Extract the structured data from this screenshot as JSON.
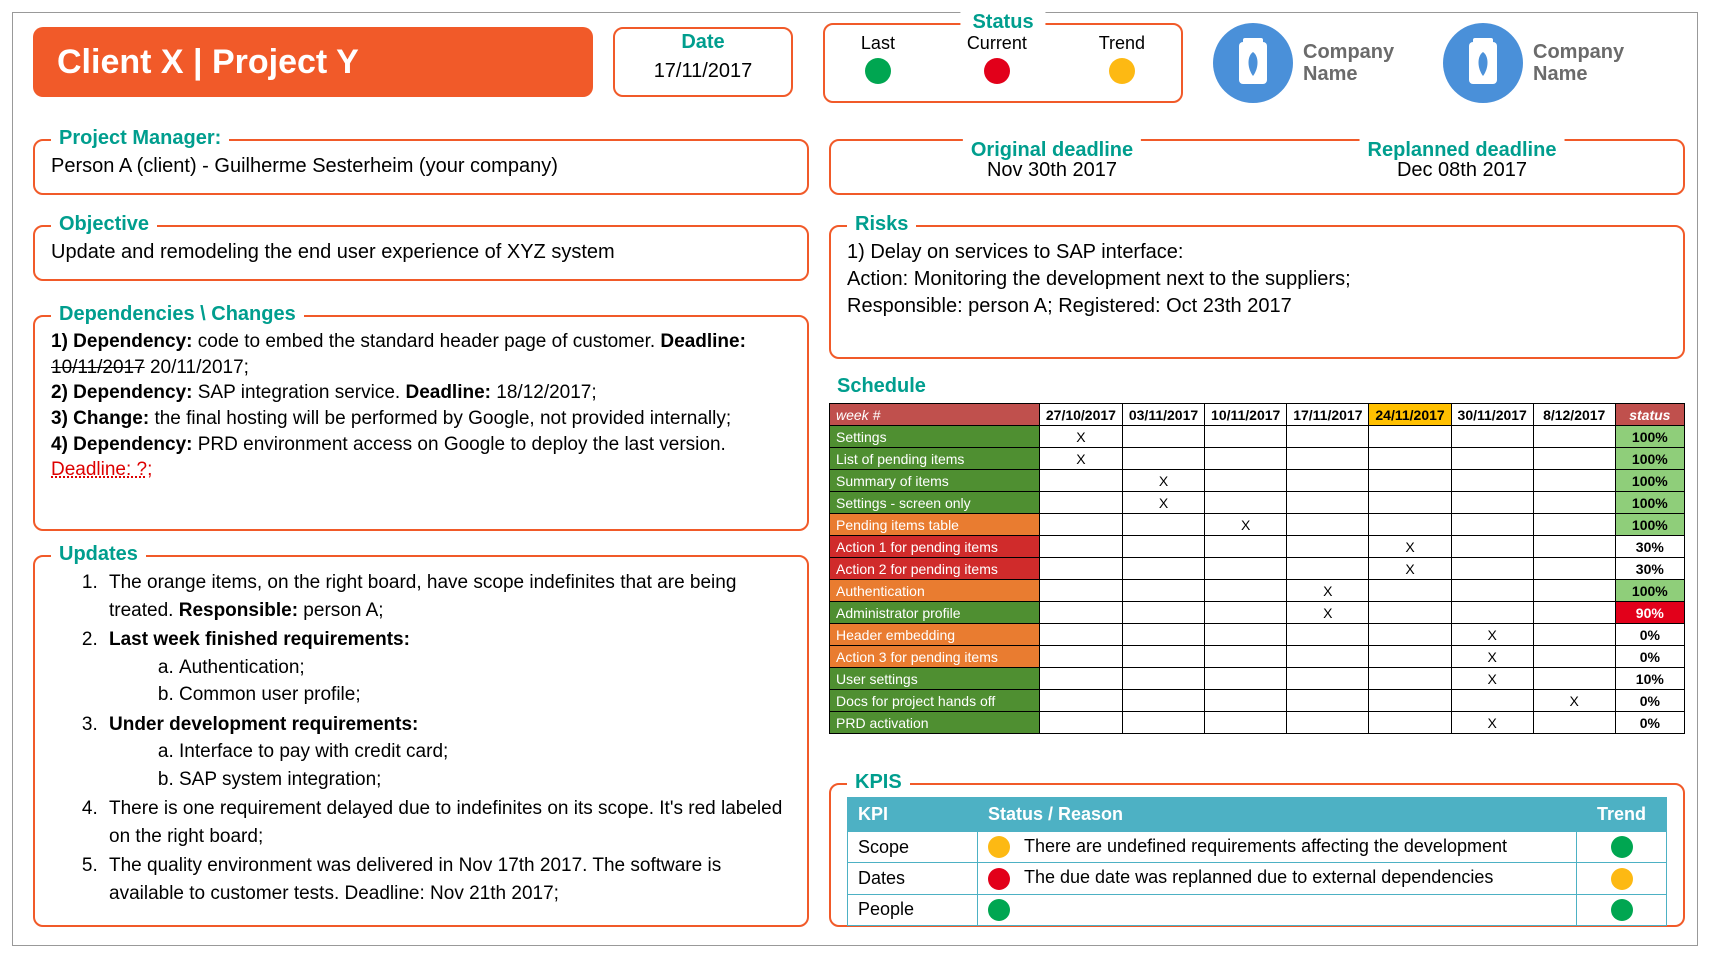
{
  "colors": {
    "orange": "#f15a29",
    "teal": "#009e8e",
    "green": "#00a651",
    "red": "#e2001a",
    "yellow": "#fdb913",
    "scheduleHeaderRed": "#c0504d",
    "scheduleGreen": "#4f8f31",
    "scheduleOrange": "#e97c30",
    "scheduleRed": "#d02b2b",
    "status100": "#8fce7a",
    "status90red": "#e2001a",
    "kpiHeader": "#4db1c4",
    "logoBlue": "#4a90d9"
  },
  "title": "Client X | Project Y",
  "date": {
    "label": "Date",
    "value": "17/11/2017"
  },
  "status": {
    "title": "Status",
    "cols": [
      {
        "label": "Last",
        "color": "#00a651"
      },
      {
        "label": "Current",
        "color": "#e2001a"
      },
      {
        "label": "Trend",
        "color": "#fdb913"
      }
    ]
  },
  "logos": [
    {
      "line1": "Company",
      "line2": "Name"
    },
    {
      "line1": "Company",
      "line2": "Name"
    }
  ],
  "pm": {
    "label": "Project Manager:",
    "value": "Person A (client) - Guilherme Sesterheim (your company)"
  },
  "objective": {
    "label": "Objective",
    "value": "Update and remodeling the end user experience of XYZ system"
  },
  "deadlines": {
    "original": {
      "label": "Original deadline",
      "value": "Nov 30th 2017"
    },
    "replanned": {
      "label": "Replanned deadline",
      "value": "Dec 08th 2017"
    }
  },
  "risks": {
    "label": "Risks",
    "lines": [
      "1) Delay on services to SAP interface:",
      "Action: Monitoring the development next to the suppliers;",
      "Responsible: person A;      Registered: Oct 23th 2017"
    ]
  },
  "dependencies": {
    "label": "Dependencies \\ Changes",
    "items": [
      {
        "prefix": "1) Dependency:",
        "text": " code to embed the standard header page of customer. ",
        "boldSuffix": "Deadline:",
        "strike": "10/11/2017",
        "after": " 20/11/2017;"
      },
      {
        "prefix": "2) Dependency:",
        "text": " SAP integration service. ",
        "boldSuffix": "Deadline:",
        "after2": " 18/12/2017;"
      },
      {
        "prefix": "3) Change:",
        "text": " the final hosting will be performed by Google, not provided internally;"
      },
      {
        "prefix": "4) Dependency:",
        "text": " PRD environment access on Google to deploy the last version. ",
        "redSuffix": "Deadline: ?;"
      }
    ]
  },
  "updates": {
    "label": "Updates",
    "items": [
      {
        "text": "The orange items, on the right board, have scope indefinites that are being treated. ",
        "boldInline": "Responsible:",
        "after": " person A;"
      },
      {
        "boldFull": "Last week finished requirements:",
        "sub": [
          "Authentication;",
          "Common user profile;"
        ]
      },
      {
        "boldFull": "Under development requirements:",
        "sub": [
          "Interface to pay with credit card;",
          "SAP system integration;"
        ]
      },
      {
        "plain": "There is one requirement delayed due to indefinites on its scope. It's red labeled on the right board;"
      },
      {
        "plain": "The quality environment was delivered in Nov 17th 2017. The software is available to customer tests. Deadline: Nov 21th 2017;"
      }
    ]
  },
  "schedule": {
    "title": "Schedule",
    "weekHeader": "week #",
    "statusHeader": "status",
    "dates": [
      "27/10/2017",
      "03/11/2017",
      "10/11/2017",
      "17/11/2017",
      "24/11/2017",
      "30/11/2017",
      "8/12/2017"
    ],
    "highlightCol": 4,
    "rows": [
      {
        "name": "Settings",
        "rowColor": "#4f8f31",
        "marks": [
          true,
          false,
          false,
          false,
          false,
          false,
          false
        ],
        "status": "100%",
        "statusBg": "#8fce7a",
        "statusColor": "#000"
      },
      {
        "name": "List of pending items",
        "rowColor": "#4f8f31",
        "marks": [
          true,
          false,
          false,
          false,
          false,
          false,
          false
        ],
        "status": "100%",
        "statusBg": "#8fce7a",
        "statusColor": "#000"
      },
      {
        "name": "Summary of items",
        "rowColor": "#4f8f31",
        "marks": [
          false,
          true,
          false,
          false,
          false,
          false,
          false
        ],
        "status": "100%",
        "statusBg": "#8fce7a",
        "statusColor": "#000"
      },
      {
        "name": "Settings - screen only",
        "rowColor": "#4f8f31",
        "marks": [
          false,
          true,
          false,
          false,
          false,
          false,
          false
        ],
        "status": "100%",
        "statusBg": "#8fce7a",
        "statusColor": "#000"
      },
      {
        "name": "Pending items table",
        "rowColor": "#e97c30",
        "marks": [
          false,
          false,
          true,
          false,
          false,
          false,
          false
        ],
        "status": "100%",
        "statusBg": "#8fce7a",
        "statusColor": "#000"
      },
      {
        "name": "Action 1 for pending items",
        "rowColor": "#d02b2b",
        "marks": [
          false,
          false,
          false,
          false,
          true,
          false,
          false
        ],
        "status": "30%",
        "statusBg": "#ffffff",
        "statusColor": "#000"
      },
      {
        "name": "Action 2 for pending items",
        "rowColor": "#d02b2b",
        "marks": [
          false,
          false,
          false,
          false,
          true,
          false,
          false
        ],
        "status": "30%",
        "statusBg": "#ffffff",
        "statusColor": "#000"
      },
      {
        "name": "Authentication",
        "rowColor": "#e97c30",
        "marks": [
          false,
          false,
          false,
          true,
          false,
          false,
          false
        ],
        "status": "100%",
        "statusBg": "#8fce7a",
        "statusColor": "#000"
      },
      {
        "name": "Administrator profile",
        "rowColor": "#4f8f31",
        "marks": [
          false,
          false,
          false,
          true,
          false,
          false,
          false
        ],
        "status": "90%",
        "statusBg": "#e2001a",
        "statusColor": "#fff"
      },
      {
        "name": "Header embedding",
        "rowColor": "#e97c30",
        "marks": [
          false,
          false,
          false,
          false,
          false,
          true,
          false
        ],
        "status": "0%",
        "statusBg": "#ffffff",
        "statusColor": "#000"
      },
      {
        "name": "Action 3 for pending items",
        "rowColor": "#e97c30",
        "marks": [
          false,
          false,
          false,
          false,
          false,
          true,
          false
        ],
        "status": "0%",
        "statusBg": "#ffffff",
        "statusColor": "#000"
      },
      {
        "name": "User settings",
        "rowColor": "#4f8f31",
        "marks": [
          false,
          false,
          false,
          false,
          false,
          true,
          false
        ],
        "status": "10%",
        "statusBg": "#ffffff",
        "statusColor": "#000"
      },
      {
        "name": "Docs for project hands off",
        "rowColor": "#4f8f31",
        "marks": [
          false,
          false,
          false,
          false,
          false,
          false,
          true
        ],
        "status": "0%",
        "statusBg": "#ffffff",
        "statusColor": "#000"
      },
      {
        "name": "PRD activation",
        "rowColor": "#4f8f31",
        "marks": [
          false,
          false,
          false,
          false,
          false,
          true,
          false
        ],
        "status": "0%",
        "statusBg": "#ffffff",
        "statusColor": "#000"
      }
    ]
  },
  "kpis": {
    "label": "KPIS",
    "headers": {
      "kpi": "KPI",
      "status": "Status / Reason",
      "trend": "Trend"
    },
    "rows": [
      {
        "name": "Scope",
        "statusColor": "#fdb913",
        "reason": "There are undefined requirements affecting the development",
        "trendColor": "#00a651"
      },
      {
        "name": "Dates",
        "statusColor": "#e2001a",
        "reason": "The due date was replanned due to external dependencies",
        "trendColor": "#fdb913"
      },
      {
        "name": "People",
        "statusColor": "#00a651",
        "reason": "",
        "trendColor": "#00a651"
      }
    ]
  }
}
